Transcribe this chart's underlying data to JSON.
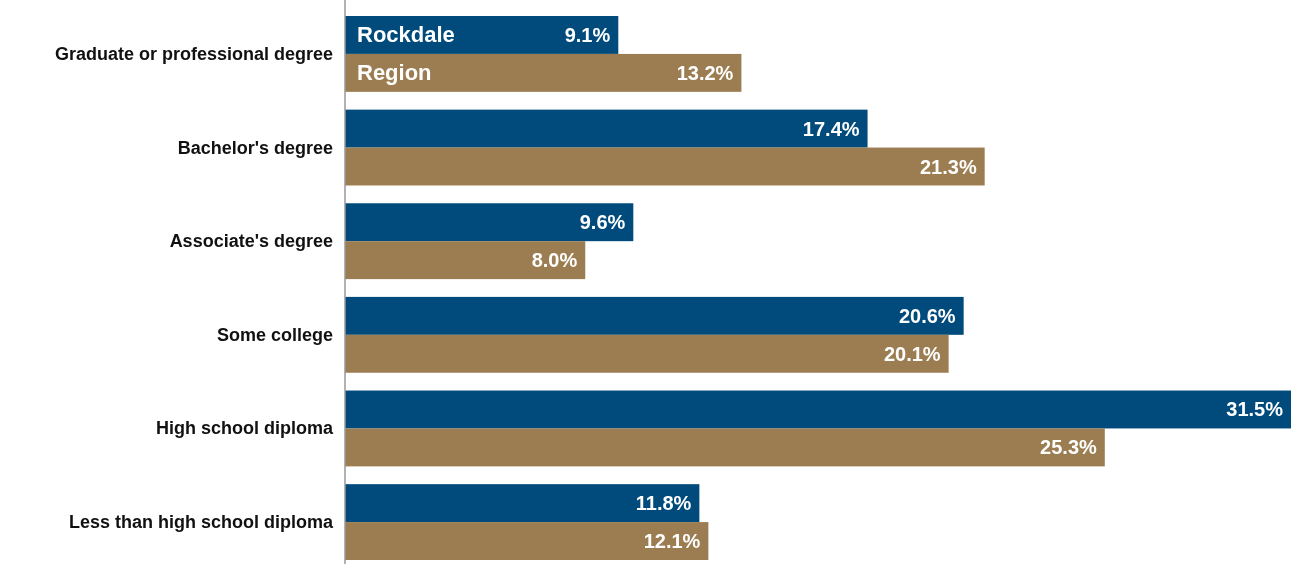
{
  "chart_data": {
    "type": "bar",
    "orientation": "horizontal",
    "categories": [
      "Graduate or professional degree",
      "Bachelor's degree",
      "Associate's degree",
      "Some college",
      "High school diploma",
      "Less than high school diploma"
    ],
    "series": [
      {
        "name": "Rockdale",
        "color": "#004b7c",
        "values": [
          9.1,
          17.4,
          9.6,
          20.6,
          31.5,
          11.8
        ],
        "value_labels": [
          "9.1%",
          "17.4%",
          "9.6%",
          "20.6%",
          "31.5%",
          "11.8%"
        ]
      },
      {
        "name": "Region",
        "color": "#9b7d51",
        "values": [
          13.2,
          21.3,
          8.0,
          20.1,
          25.3,
          12.1
        ],
        "value_labels": [
          "13.2%",
          "21.3%",
          "8.0%",
          "20.1%",
          "25.3%",
          "12.1%"
        ]
      }
    ]
  }
}
